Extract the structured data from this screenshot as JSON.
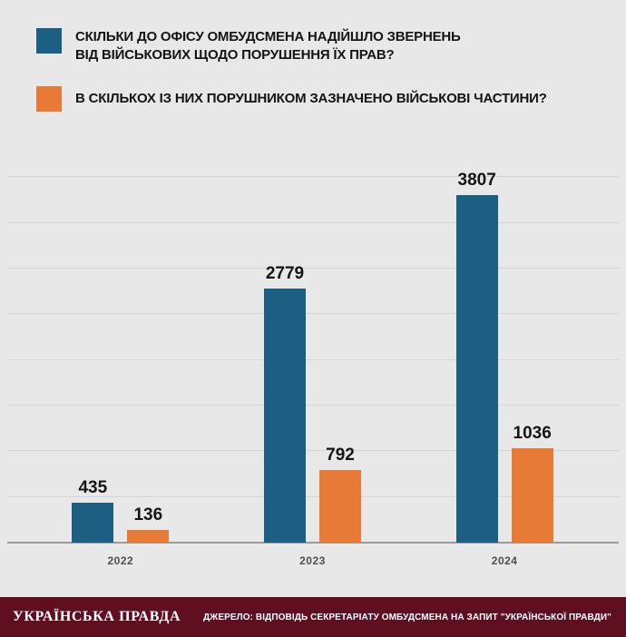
{
  "legend": {
    "appeals": {
      "line1": "СКІЛЬКИ ДО ОФІСУ ОМБУДСМЕНА НАДІЙШЛО ЗВЕРНЕНЬ",
      "line2": "ВІД ВІЙСЬКОВИХ ЩОДО ПОРУШЕННЯ ЇХ ПРАВ?"
    },
    "units": {
      "line1": "В СКІЛЬКОХ ІЗ НИХ ПОРУШНИКОМ ЗАЗНАЧЕНО ВІЙСЬКОВІ ЧАСТИНИ?"
    }
  },
  "chart_data": {
    "type": "bar",
    "categories": [
      "2022",
      "2023",
      "2024"
    ],
    "series": [
      {
        "name": "СКІЛЬКИ ДО ОФІСУ ОМБУДСМЕНА НАДІЙШЛО ЗВЕРНЕНЬ ВІД ВІЙСЬКОВИХ ЩОДО ПОРУШЕННЯ ЇХ ПРАВ?",
        "color": "#1d5f82",
        "values": [
          435,
          2779,
          3807
        ]
      },
      {
        "name": "В СКІЛЬКОХ ІЗ НИХ ПОРУШНИКОМ ЗАЗНАЧЕНО ВІЙСЬКОВІ ЧАСТИНИ?",
        "color": "#e87a38",
        "values": [
          136,
          792,
          1036
        ]
      }
    ],
    "ylim": [
      0,
      4300
    ],
    "grid": true,
    "gridline_step": 500,
    "legend_position": "top",
    "xlabel": "",
    "ylabel": ""
  },
  "footer": {
    "logo": "УКРАЇНСЬКА ПРАВДА",
    "source": "ДЖЕРЕЛО: ВІДПОВІДЬ СЕКРЕТАРІАТУ ОМБУДСМЕНА НА ЗАПИТ \"УКРАЇНСЬКОЇ ПРАВДИ\"",
    "bg_color": "#5f0f20"
  }
}
